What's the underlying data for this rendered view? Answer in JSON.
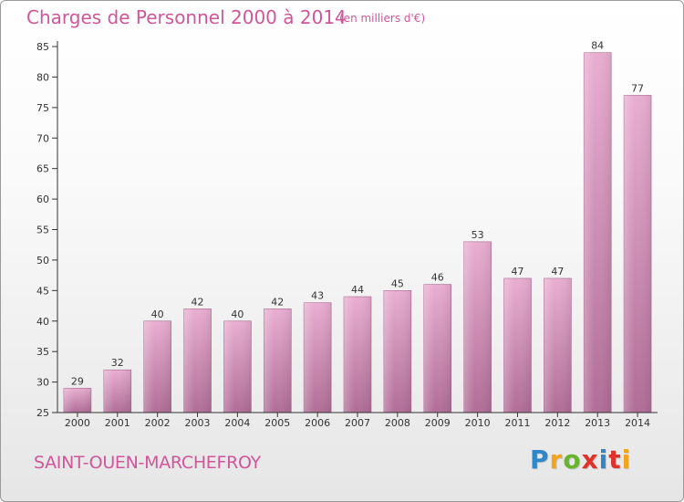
{
  "header": {
    "title": "Charges de Personnel 2000 à 2014",
    "unit": "(en milliers d'€)"
  },
  "footer": {
    "commune": "SAINT-OUEN-MARCHEFROY",
    "logo_letters": [
      "P",
      "r",
      "o",
      "x",
      "i",
      "t",
      "i"
    ]
  },
  "colors": {
    "title": "#d0569a",
    "bar_light": "#e9aed1",
    "bar_dark": "#b06d97",
    "axis": "#000000",
    "grid": "#c8c8c8"
  },
  "chart_data": {
    "type": "bar",
    "title": "Charges de Personnel 2000 à 2014",
    "xlabel": "",
    "ylabel": "",
    "ylim": [
      25,
      85
    ],
    "yticks": [
      25,
      30,
      35,
      40,
      45,
      50,
      55,
      60,
      65,
      70,
      75,
      80,
      85
    ],
    "grid": false,
    "categories": [
      "2000",
      "2001",
      "2002",
      "2003",
      "2004",
      "2005",
      "2006",
      "2007",
      "2008",
      "2009",
      "2010",
      "2011",
      "2012",
      "2013",
      "2014"
    ],
    "values": [
      29,
      32,
      40,
      42,
      40,
      42,
      43,
      44,
      45,
      46,
      53,
      47,
      47,
      84,
      77
    ]
  }
}
